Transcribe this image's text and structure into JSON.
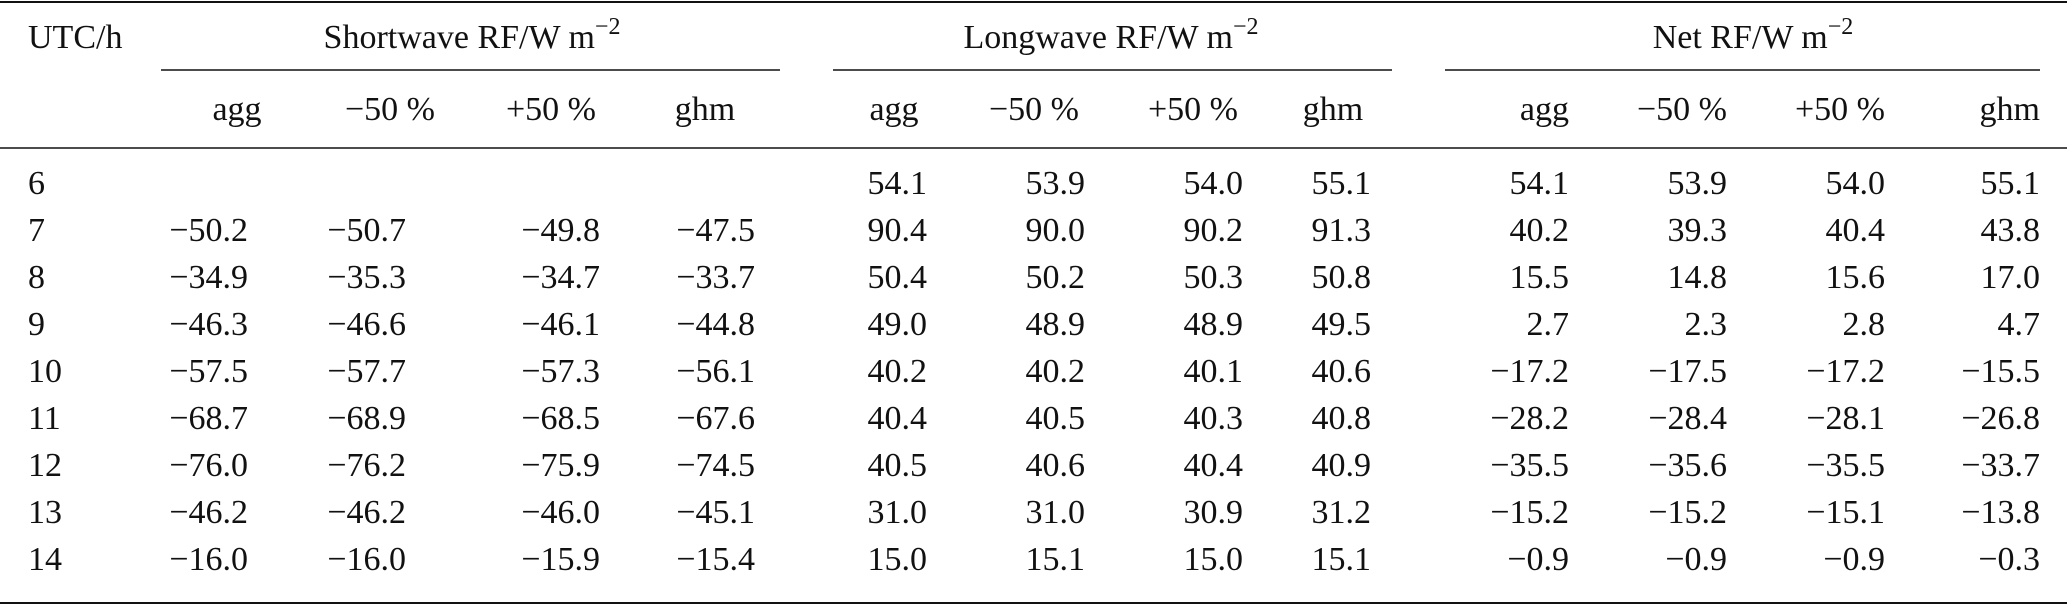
{
  "table": {
    "stub_header": "UTC/h",
    "groups": [
      {
        "title": "Shortwave RF/W m",
        "sup": "−2",
        "columns": [
          "agg",
          "−50 %",
          "+50 %",
          "ghm"
        ]
      },
      {
        "title": "Longwave RF/W m",
        "sup": "−2",
        "columns": [
          "agg",
          "−50 %",
          "+50 %",
          "ghm"
        ]
      },
      {
        "title": "Net RF/W m",
        "sup": "−2",
        "columns": [
          "agg",
          "−50 %",
          "+50 %",
          "ghm"
        ]
      }
    ],
    "rows": [
      [
        "6",
        null,
        null,
        null,
        null,
        "54.1",
        "53.9",
        "54.0",
        "55.1",
        "54.1",
        "53.9",
        "54.0",
        "55.1"
      ],
      [
        "7",
        "−50.2",
        "−50.7",
        "−49.8",
        "−47.5",
        "90.4",
        "90.0",
        "90.2",
        "91.3",
        "40.2",
        "39.3",
        "40.4",
        "43.8"
      ],
      [
        "8",
        "−34.9",
        "−35.3",
        "−34.7",
        "−33.7",
        "50.4",
        "50.2",
        "50.3",
        "50.8",
        "15.5",
        "14.8",
        "15.6",
        "17.0"
      ],
      [
        "9",
        "−46.3",
        "−46.6",
        "−46.1",
        "−44.8",
        "49.0",
        "48.9",
        "48.9",
        "49.5",
        "2.7",
        "2.3",
        "2.8",
        "4.7"
      ],
      [
        "10",
        "−57.5",
        "−57.7",
        "−57.3",
        "−56.1",
        "40.2",
        "40.2",
        "40.1",
        "40.6",
        "−17.2",
        "−17.5",
        "−17.2",
        "−15.5"
      ],
      [
        "11",
        "−68.7",
        "−68.9",
        "−68.5",
        "−67.6",
        "40.4",
        "40.5",
        "40.3",
        "40.8",
        "−28.2",
        "−28.4",
        "−28.1",
        "−26.8"
      ],
      [
        "12",
        "−76.0",
        "−76.2",
        "−75.9",
        "−74.5",
        "40.5",
        "40.6",
        "40.4",
        "40.9",
        "−35.5",
        "−35.6",
        "−35.5",
        "−33.7"
      ],
      [
        "13",
        "−46.2",
        "−46.2",
        "−46.0",
        "−45.1",
        "31.0",
        "31.0",
        "30.9",
        "31.2",
        "−15.2",
        "−15.2",
        "−15.1",
        "−13.8"
      ],
      [
        "14",
        "−16.0",
        "−16.0",
        "−15.9",
        "−15.4",
        "15.0",
        "15.1",
        "15.0",
        "15.1",
        "−0.9",
        "−0.9",
        "−0.9",
        "−0.3"
      ]
    ]
  }
}
